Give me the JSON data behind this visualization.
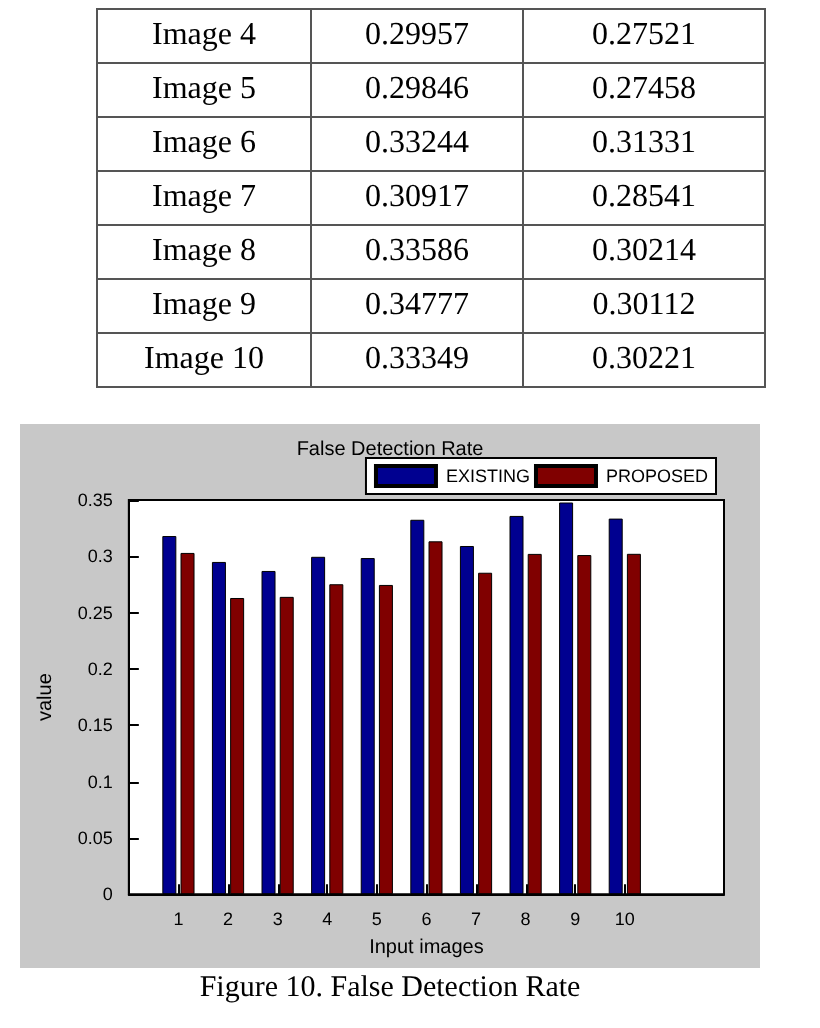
{
  "chart_data": [
    {
      "type": "other",
      "annotations": [
        "Image 4",
        "0.29957",
        "0.27521",
        "Image 5",
        "0.29846",
        "0.27458",
        "Image 6",
        "0.33244",
        "0.31331",
        "Image 7",
        "0.30917",
        "0.28541",
        "Image 8",
        "0.33586",
        "0.30214",
        "Image 9",
        "0.34777",
        "0.30112",
        "Image 10",
        "0.33349",
        "0.30221"
      ]
    },
    {
      "type": "bar",
      "title": "False Detection Rate",
      "xlabel": "Input images",
      "ylabel": "value",
      "x": [
        1,
        2,
        3,
        4,
        5,
        6,
        7,
        8,
        9,
        10
      ],
      "series": [
        {
          "name": "EXISTING",
          "color": "#000090",
          "values": [
            0.318,
            0.295,
            0.287,
            0.29957,
            0.29846,
            0.33244,
            0.30917,
            0.33586,
            0.34777,
            0.33349
          ]
        },
        {
          "name": "PROPOSED",
          "color": "#800000",
          "values": [
            0.303,
            0.263,
            0.264,
            0.27521,
            0.27458,
            0.31331,
            0.28541,
            0.30214,
            0.30112,
            0.30221
          ]
        }
      ],
      "xlim": [
        0,
        12
      ],
      "xticks": [
        1,
        2,
        3,
        4,
        5,
        6,
        7,
        8,
        9,
        10
      ],
      "ylim": [
        0,
        0.35
      ],
      "yticks": [
        0,
        0.05,
        0.1,
        0.15,
        0.2,
        0.25,
        0.3,
        0.35
      ],
      "grid": false,
      "legend": "top right",
      "annotations": [
        "Figure 10. False Detection Rate"
      ]
    }
  ]
}
